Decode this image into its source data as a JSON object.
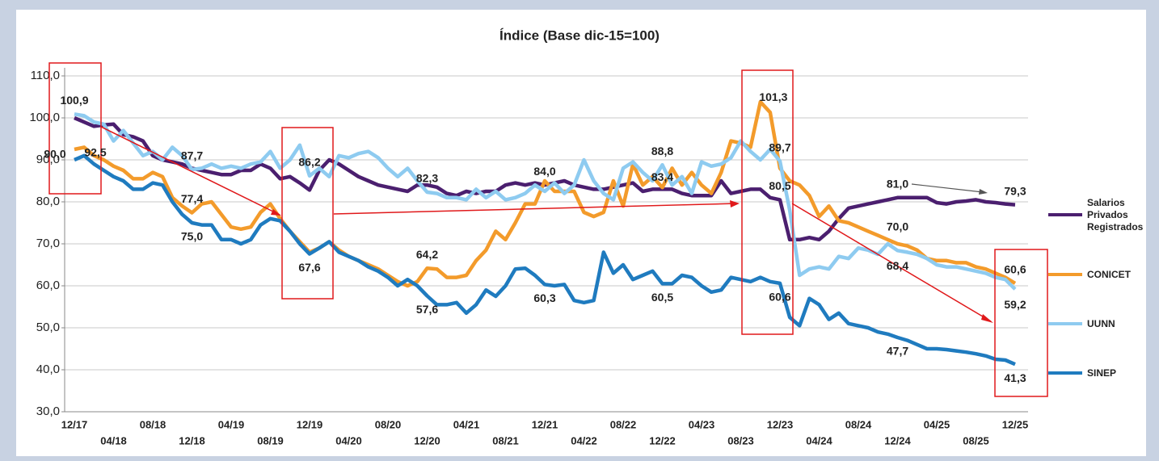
{
  "chart_data": {
    "type": "line",
    "title": "Índice (Base dic-15=100)",
    "categories": [
      "12/17",
      null,
      null,
      null,
      "04/18",
      null,
      null,
      null,
      "08/18",
      null,
      null,
      null,
      "12/18",
      null,
      null,
      null,
      "04/19",
      null,
      null,
      null,
      "08/19",
      null,
      null,
      null,
      "12/19",
      null,
      null,
      null,
      "04/20",
      null,
      null,
      null,
      "08/20",
      null,
      null,
      null,
      "12/20",
      null,
      null,
      null,
      "04/21",
      null,
      null,
      null,
      "08/21",
      null,
      null,
      null,
      "12/21",
      null,
      null,
      null,
      "04/22",
      null,
      null,
      null,
      "08/22",
      null,
      null,
      null,
      "12/22",
      null,
      null,
      null,
      "04/23",
      null,
      null,
      null,
      "08/23",
      null,
      null,
      null,
      "12/23",
      null,
      null,
      null,
      "04/24",
      null,
      null,
      null,
      "08/24",
      null,
      null,
      null,
      "12/24",
      null,
      null,
      null,
      "04/25",
      null,
      null,
      null,
      "08/25",
      null,
      null,
      null,
      "12/25"
    ],
    "ylim": [
      30,
      110
    ],
    "yticks": [
      {
        "value": 30,
        "label": "30,0"
      },
      {
        "value": 40,
        "label": "40,0"
      },
      {
        "value": 50,
        "label": "50,0"
      },
      {
        "value": 60,
        "label": "60,0"
      },
      {
        "value": 70,
        "label": "70,0"
      },
      {
        "value": 80,
        "label": "80,0"
      },
      {
        "value": 90,
        "label": "90,0"
      },
      {
        "value": 100,
        "label": "100,0"
      },
      {
        "value": 110,
        "label": "110,0"
      }
    ],
    "grid": true,
    "legend": "right",
    "series": [
      {
        "name": "Salarios Privados Registrados",
        "color": "#4b1f6f",
        "values": [
          100,
          99,
          98,
          98.3,
          98.5,
          96,
          95.5,
          94.5,
          91,
          90,
          89.5,
          89,
          88,
          87.5,
          87,
          86.5,
          86.5,
          87.5,
          87.5,
          89,
          88,
          85.5,
          86,
          84.5,
          82.8,
          87.5,
          90,
          89,
          87.5,
          86,
          85,
          84,
          83.5,
          83,
          82.5,
          84,
          84,
          83.5,
          82,
          81.5,
          82.5,
          82,
          82.5,
          82.5,
          84,
          84.5,
          84,
          84.5,
          84,
          84.5,
          85,
          84,
          83.5,
          83,
          83,
          83.5,
          84,
          84.5,
          82.5,
          83,
          83,
          83,
          82,
          81.5,
          81.5,
          81.5,
          85,
          82,
          82.5,
          83,
          83,
          81,
          80.5,
          71,
          71,
          71.5,
          71,
          73,
          76,
          78.5,
          79,
          79.5,
          80,
          80.5,
          81,
          81,
          81,
          81,
          79.8,
          79.5,
          80,
          80.2,
          80.5,
          80,
          79.8,
          79.5,
          79.3
        ],
        "value_labels": [
          null,
          null,
          null,
          null,
          null,
          null,
          null,
          null,
          null,
          null,
          null,
          null,
          null,
          null,
          null,
          null,
          null,
          null,
          null,
          null,
          null,
          null,
          null,
          null,
          null,
          null,
          null,
          null,
          null,
          null,
          null,
          null,
          null,
          null,
          null,
          null,
          null,
          null,
          null,
          null,
          null,
          null,
          null,
          null,
          null,
          null,
          null,
          null,
          "84,0",
          null,
          null,
          null,
          null,
          null,
          null,
          null,
          null,
          null,
          null,
          null,
          null,
          null,
          null,
          null,
          null,
          null,
          null,
          null,
          null,
          null,
          null,
          null,
          "80,5",
          null,
          null,
          null,
          null,
          null,
          null,
          null,
          null,
          null,
          null,
          null,
          "81,0",
          null,
          null,
          null,
          null,
          null,
          null,
          null,
          null,
          null,
          null,
          null,
          "79,3"
        ]
      },
      {
        "name": "CONICET",
        "color": "#f39b2b",
        "values": [
          92.5,
          93,
          91,
          90,
          88.5,
          87.5,
          85.5,
          85.5,
          87,
          86,
          81,
          79,
          77.4,
          79.5,
          80,
          77,
          74,
          73.5,
          74,
          77.5,
          79.5,
          76,
          73,
          70.5,
          68,
          69,
          70.5,
          68.5,
          67,
          66,
          65,
          64,
          62.5,
          61,
          60,
          61,
          64.2,
          64,
          62,
          62,
          62.5,
          66,
          68.5,
          73,
          71,
          75,
          79.5,
          79.5,
          85,
          82.5,
          82.5,
          82.5,
          77.5,
          76.5,
          77.5,
          85,
          79,
          89,
          84,
          86,
          83.4,
          88,
          84,
          87,
          84,
          82,
          87,
          94.5,
          94,
          93,
          103.8,
          101.3,
          88,
          85,
          84,
          81.5,
          76.5,
          79,
          75.5,
          75,
          74,
          73,
          72,
          71,
          70,
          69.5,
          68.5,
          66.5,
          66,
          66,
          65.5,
          65.5,
          64.5,
          64,
          63,
          62,
          60.6
        ],
        "value_labels": [
          "92,5",
          null,
          null,
          null,
          null,
          null,
          null,
          null,
          null,
          null,
          null,
          null,
          "77,4",
          null,
          null,
          null,
          null,
          null,
          null,
          null,
          null,
          null,
          null,
          null,
          null,
          null,
          null,
          null,
          null,
          null,
          null,
          null,
          null,
          null,
          null,
          null,
          "64,2",
          null,
          null,
          null,
          null,
          null,
          null,
          null,
          null,
          null,
          null,
          null,
          null,
          null,
          null,
          null,
          null,
          null,
          null,
          null,
          null,
          null,
          null,
          null,
          "83,4",
          null,
          null,
          null,
          null,
          null,
          null,
          null,
          null,
          null,
          null,
          "101,3",
          null,
          null,
          null,
          null,
          null,
          null,
          null,
          null,
          null,
          null,
          null,
          null,
          "70,0",
          null,
          null,
          null,
          null,
          null,
          null,
          null,
          null,
          null,
          null,
          null,
          "60,6"
        ]
      },
      {
        "name": "UUNN",
        "color": "#8ecbf0",
        "values": [
          100.9,
          100.5,
          99,
          98.5,
          94.5,
          97,
          94,
          91,
          92,
          90,
          93,
          91,
          87.7,
          88,
          89,
          88,
          88.5,
          88,
          89,
          89.5,
          92,
          88,
          90,
          93.5,
          86.2,
          88,
          86,
          91,
          90.5,
          91.5,
          92,
          90.5,
          88,
          86,
          88,
          85,
          82.3,
          82,
          81,
          81,
          80.5,
          83,
          81,
          82.5,
          80.5,
          81,
          82,
          84,
          82.5,
          84.5,
          82,
          84,
          90,
          85,
          82,
          80.5,
          88,
          89.5,
          87,
          85,
          88.8,
          84,
          86,
          82,
          89.5,
          88.5,
          89,
          90.5,
          94.5,
          92,
          90,
          92.5,
          89.7,
          78,
          62.5,
          64,
          64.5,
          64,
          67,
          66.5,
          69,
          68.5,
          67.5,
          70,
          68.4,
          68,
          67.5,
          66.5,
          65,
          64.5,
          64.5,
          64,
          63.5,
          63,
          62,
          61.5,
          59.2
        ],
        "value_labels": [
          "100,9",
          null,
          null,
          null,
          null,
          null,
          null,
          null,
          null,
          null,
          null,
          null,
          "87,7",
          null,
          null,
          null,
          null,
          null,
          null,
          null,
          null,
          null,
          null,
          null,
          "86,2",
          null,
          null,
          null,
          null,
          null,
          null,
          null,
          null,
          null,
          null,
          null,
          "82,3",
          null,
          null,
          null,
          null,
          null,
          null,
          null,
          null,
          null,
          null,
          null,
          null,
          null,
          null,
          null,
          null,
          null,
          null,
          null,
          null,
          null,
          null,
          null,
          "88,8",
          null,
          null,
          null,
          null,
          null,
          null,
          null,
          null,
          null,
          null,
          null,
          "89,7",
          null,
          null,
          null,
          null,
          null,
          null,
          null,
          null,
          null,
          null,
          null,
          "68,4",
          null,
          null,
          null,
          null,
          null,
          null,
          null,
          null,
          null,
          null,
          null,
          "59,2"
        ]
      },
      {
        "name": "SINEP",
        "color": "#1f7bbf",
        "values": [
          90,
          91,
          89,
          87.5,
          86,
          85,
          83,
          83,
          84.5,
          84,
          80,
          77,
          75,
          74.5,
          74.5,
          71,
          71,
          70,
          71,
          74.5,
          76,
          75.5,
          73,
          70,
          67.6,
          69,
          70.5,
          68,
          67,
          66,
          64.5,
          63.5,
          62,
          60,
          61.5,
          60,
          57.6,
          55.5,
          55.5,
          56,
          53.5,
          55.5,
          59,
          57.5,
          60,
          64,
          64.2,
          62.5,
          60.3,
          60,
          60.3,
          56.5,
          56,
          56.5,
          68,
          63,
          65,
          61.5,
          62.5,
          63.5,
          60.5,
          60.5,
          62.5,
          62,
          60,
          58.5,
          59,
          62,
          61.5,
          61,
          62,
          61,
          60.6,
          52.5,
          50.5,
          57,
          55.5,
          52,
          53.5,
          51,
          50.5,
          50,
          49,
          48.5,
          47.7,
          47,
          46,
          45,
          45,
          44.8,
          44.5,
          44.2,
          43.8,
          43.3,
          42.5,
          42.3,
          41.3
        ],
        "value_labels": [
          "90,0",
          null,
          null,
          null,
          null,
          null,
          null,
          null,
          null,
          null,
          null,
          null,
          "75,0",
          null,
          null,
          null,
          null,
          null,
          null,
          null,
          null,
          null,
          null,
          null,
          "67,6",
          null,
          null,
          null,
          null,
          null,
          null,
          null,
          null,
          null,
          null,
          null,
          "57,6",
          null,
          null,
          null,
          null,
          null,
          null,
          null,
          null,
          null,
          null,
          null,
          "60,3",
          null,
          null,
          null,
          null,
          null,
          null,
          null,
          null,
          null,
          null,
          null,
          "60,5",
          null,
          null,
          null,
          null,
          null,
          null,
          null,
          null,
          null,
          null,
          null,
          "60,6",
          null,
          null,
          null,
          null,
          null,
          null,
          null,
          null,
          null,
          null,
          null,
          "47,7",
          null,
          null,
          null,
          null,
          null,
          null,
          null,
          null,
          null,
          null,
          null,
          "41,3"
        ]
      }
    ]
  }
}
